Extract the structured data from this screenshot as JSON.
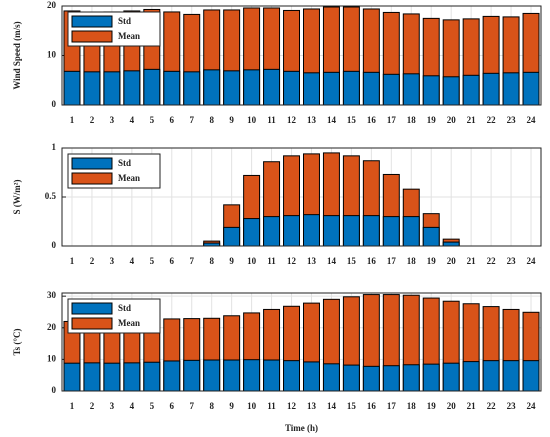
{
  "chart_data": [
    {
      "type": "bar",
      "y_label": "Wind Speed (m/s)",
      "categories": [
        "1",
        "2",
        "3",
        "4",
        "5",
        "6",
        "7",
        "8",
        "9",
        "10",
        "11",
        "12",
        "13",
        "14",
        "15",
        "16",
        "17",
        "18",
        "19",
        "20",
        "21",
        "22",
        "23",
        "24"
      ],
      "series": [
        {
          "name": "Mean",
          "color": "#d95319",
          "values": [
            19,
            18.6,
            18.8,
            19,
            19.3,
            18.8,
            18.3,
            19.2,
            19.2,
            19.6,
            19.6,
            19.1,
            19.4,
            19.8,
            19.8,
            19.4,
            18.7,
            18.4,
            17.5,
            17.2,
            17.4,
            17.9,
            17.8,
            18.5
          ]
        },
        {
          "name": "Std",
          "color": "#0072bd",
          "values": [
            6.8,
            6.7,
            6.7,
            6.9,
            7.2,
            6.8,
            6.7,
            7.1,
            6.9,
            7.1,
            7.2,
            6.8,
            6.5,
            6.6,
            6.8,
            6.6,
            6.2,
            6.3,
            5.9,
            5.7,
            6.0,
            6.4,
            6.5,
            6.6
          ]
        }
      ],
      "ylim": [
        0,
        20
      ],
      "yticks": [
        0,
        10,
        20
      ],
      "grid": true,
      "legend": "upper left"
    },
    {
      "type": "bar",
      "y_label": "S (W/m²)",
      "categories": [
        "1",
        "2",
        "3",
        "4",
        "5",
        "6",
        "7",
        "8",
        "9",
        "10",
        "11",
        "12",
        "13",
        "14",
        "15",
        "16",
        "17",
        "18",
        "19",
        "20",
        "21",
        "22",
        "23",
        "24"
      ],
      "series": [
        {
          "name": "Mean",
          "color": "#d95319",
          "values": [
            0,
            0,
            0,
            0,
            0,
            0,
            0,
            0.05,
            0.42,
            0.72,
            0.86,
            0.92,
            0.94,
            0.95,
            0.92,
            0.87,
            0.73,
            0.58,
            0.33,
            0.07,
            0,
            0,
            0,
            0
          ]
        },
        {
          "name": "Std",
          "color": "#0072bd",
          "values": [
            0,
            0,
            0,
            0,
            0,
            0,
            0,
            0.03,
            0.19,
            0.28,
            0.3,
            0.31,
            0.32,
            0.31,
            0.31,
            0.31,
            0.3,
            0.3,
            0.19,
            0.04,
            0,
            0,
            0,
            0
          ]
        }
      ],
      "ylim": [
        0,
        1
      ],
      "yticks": [
        0,
        0.5,
        1
      ],
      "grid": true,
      "legend": "upper left"
    },
    {
      "type": "bar",
      "y_label": "Ts (°C)",
      "x_label": "Time (h)",
      "categories": [
        "1",
        "2",
        "3",
        "4",
        "5",
        "6",
        "7",
        "8",
        "9",
        "10",
        "11",
        "12",
        "13",
        "14",
        "15",
        "16",
        "17",
        "18",
        "19",
        "20",
        "21",
        "22",
        "23",
        "24"
      ],
      "series": [
        {
          "name": "Mean",
          "color": "#d95319",
          "values": [
            22,
            22,
            22,
            22.3,
            22.5,
            22.8,
            22.9,
            23,
            23.8,
            24.7,
            25.8,
            26.8,
            27.8,
            29,
            29.8,
            30.5,
            30.5,
            30.3,
            29.4,
            28.4,
            27.6,
            26.7,
            25.8,
            24.9
          ]
        },
        {
          "name": "Std",
          "color": "#0072bd",
          "values": [
            8.8,
            8.9,
            8.8,
            8.9,
            9.1,
            9.5,
            9.7,
            9.8,
            9.8,
            9.9,
            9.8,
            9.6,
            9.2,
            8.6,
            8.2,
            7.8,
            8.0,
            8.3,
            8.5,
            8.8,
            9.3,
            9.6,
            9.6,
            9.6
          ]
        }
      ],
      "ylim": [
        0,
        31
      ],
      "yticks": [
        0,
        10,
        20,
        30
      ],
      "grid": true,
      "legend": "upper left"
    }
  ]
}
